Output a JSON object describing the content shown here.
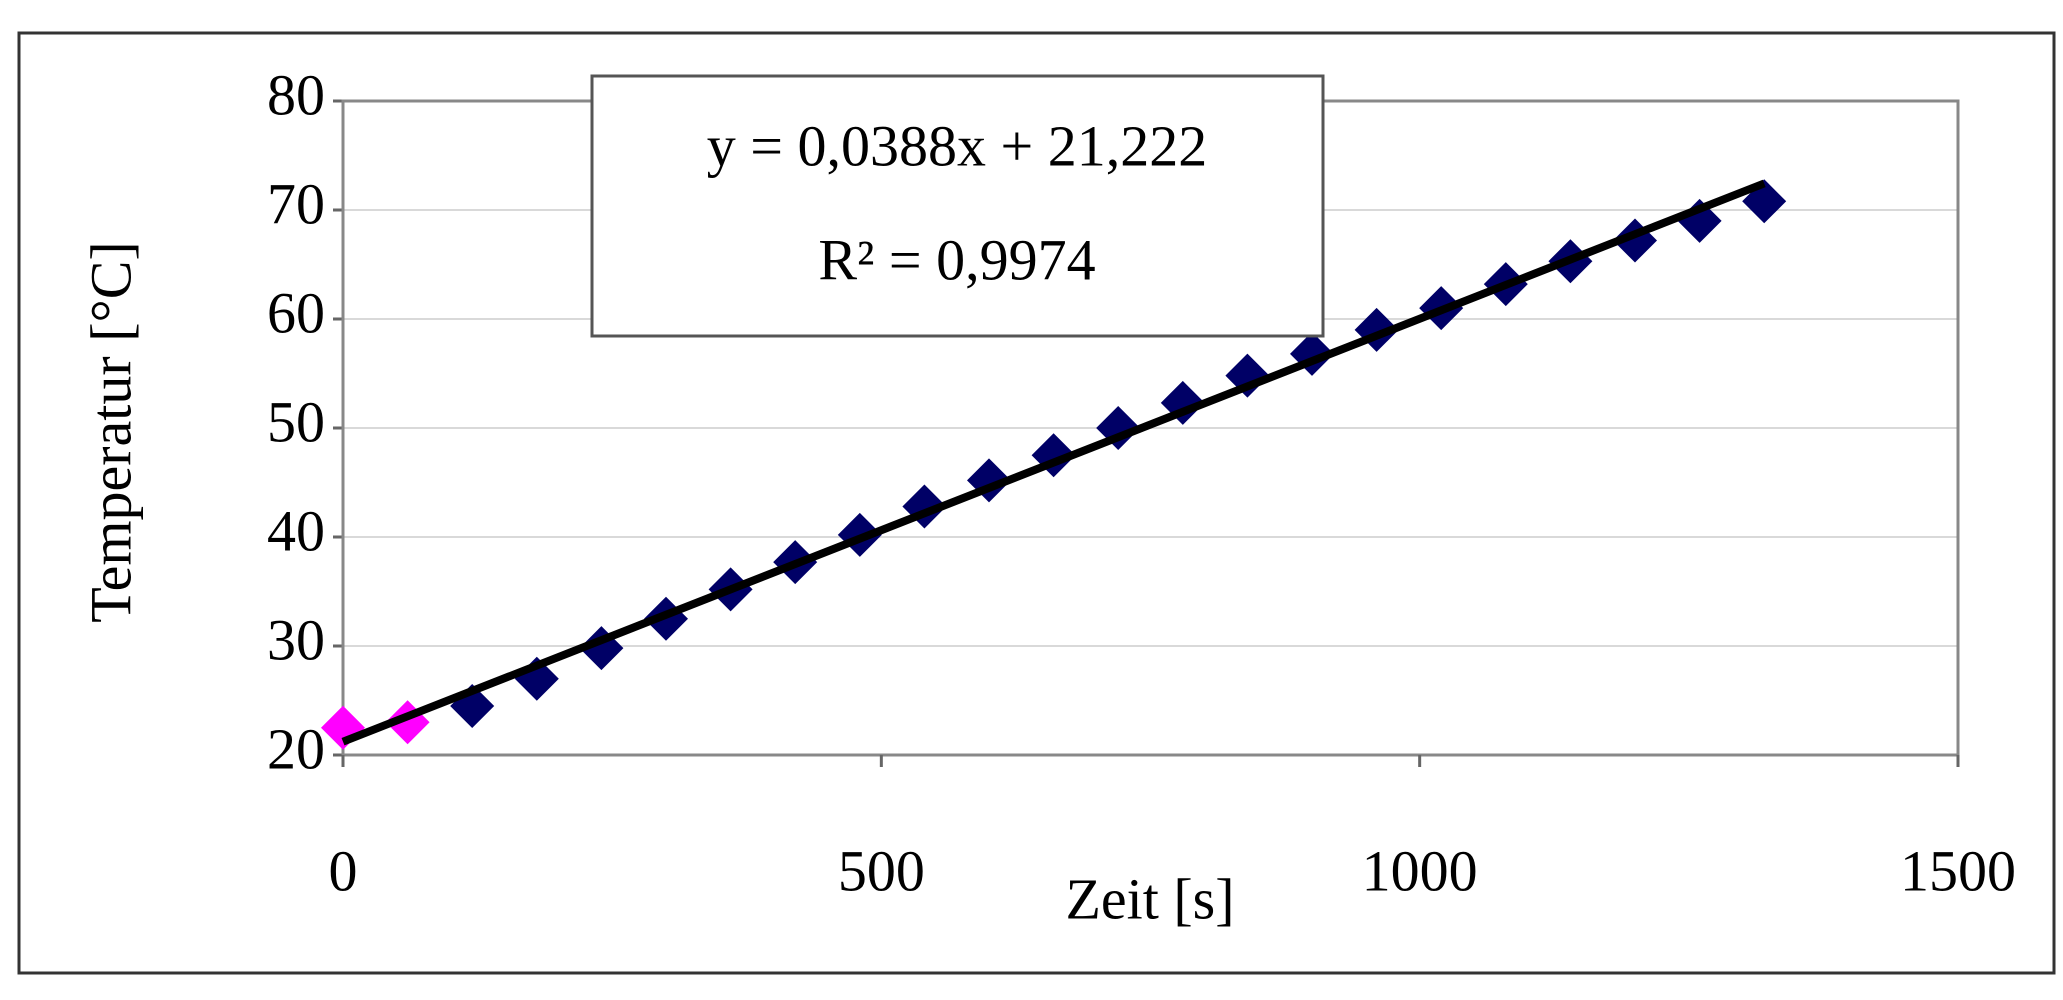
{
  "chart_data": {
    "type": "scatter",
    "x_label": "Zeit [s]",
    "y_label": "Temperatur [°C]",
    "annotations": [
      "y = 0,0388x + 21,222",
      "R² = 0,9974"
    ],
    "series": [
      {
        "color": "#ff00ff",
        "x": [
          0,
          60
        ],
        "values": [
          22.5,
          23
        ]
      },
      {
        "color": "#000066",
        "x": [
          120,
          180,
          240,
          300,
          360,
          420,
          480,
          540,
          600,
          660,
          720,
          780,
          840,
          900,
          960,
          1020,
          1080,
          1140,
          1200,
          1260,
          1320
        ],
        "values": [
          24.5,
          27,
          29.8,
          32.5,
          35.2,
          37.7,
          40.2,
          42.8,
          45.2,
          47.5,
          50,
          52.3,
          54.8,
          56.8,
          59,
          61,
          63.2,
          65.3,
          67.2,
          69,
          70.8
        ]
      }
    ],
    "trendline": {
      "color": "#000000",
      "x": [
        0,
        1320
      ],
      "values": [
        21.222,
        72.438
      ]
    },
    "xlim": [
      0,
      1500
    ],
    "xticks": [
      0,
      500,
      1000,
      1500
    ],
    "ylim": [
      20,
      80
    ],
    "yticks": [
      20,
      30,
      40,
      50,
      60,
      70,
      80
    ],
    "grid": true
  }
}
